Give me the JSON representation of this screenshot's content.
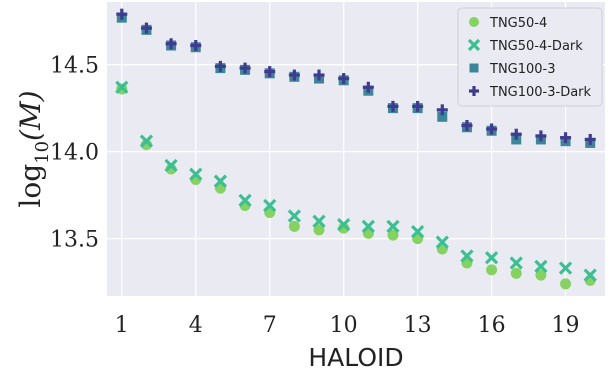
{
  "chart_data": {
    "type": "scatter",
    "title": "",
    "xlabel": "HALOID",
    "ylabel_text": "log",
    "ylabel_sub": "10",
    "ylabel_arg": "(M)",
    "xlim": [
      0.4,
      20.6
    ],
    "ylim": [
      13.17,
      14.86
    ],
    "xticks": [
      1,
      4,
      7,
      10,
      13,
      16,
      19
    ],
    "yticks": [
      13.5,
      14.0,
      14.5
    ],
    "ytick_labels": [
      "13.5",
      "14.0",
      "14.5"
    ],
    "grid": true,
    "legend_position": "top-right",
    "x": [
      1,
      2,
      3,
      4,
      5,
      6,
      7,
      8,
      9,
      10,
      11,
      12,
      13,
      14,
      15,
      16,
      17,
      18,
      19,
      20
    ],
    "series": [
      {
        "name": "TNG50-4",
        "marker": "circle",
        "color": "#7ccf57",
        "values": [
          14.36,
          14.04,
          13.9,
          13.84,
          13.79,
          13.69,
          13.65,
          13.57,
          13.55,
          13.56,
          13.53,
          13.52,
          13.5,
          13.44,
          13.36,
          13.32,
          13.3,
          13.29,
          13.24,
          13.26
        ]
      },
      {
        "name": "TNG50-4-Dark",
        "marker": "x",
        "color": "#3cbf93",
        "values": [
          14.37,
          14.06,
          13.92,
          13.87,
          13.83,
          13.72,
          13.69,
          13.63,
          13.6,
          13.58,
          13.57,
          13.57,
          13.54,
          13.48,
          13.4,
          13.39,
          13.36,
          13.34,
          13.33,
          13.29
        ]
      },
      {
        "name": "TNG100-3",
        "marker": "square",
        "color": "#2a7a8e",
        "values": [
          14.77,
          14.7,
          14.61,
          14.6,
          14.48,
          14.47,
          14.45,
          14.43,
          14.42,
          14.41,
          14.35,
          14.25,
          14.25,
          14.2,
          14.14,
          14.12,
          14.07,
          14.07,
          14.06,
          14.05
        ]
      },
      {
        "name": "TNG100-3-Dark",
        "marker": "plus",
        "color": "#3f3b8f",
        "values": [
          14.79,
          14.71,
          14.62,
          14.61,
          14.49,
          14.48,
          14.46,
          14.44,
          14.44,
          14.42,
          14.37,
          14.26,
          14.26,
          14.24,
          14.15,
          14.13,
          14.1,
          14.09,
          14.08,
          14.07
        ]
      }
    ]
  }
}
